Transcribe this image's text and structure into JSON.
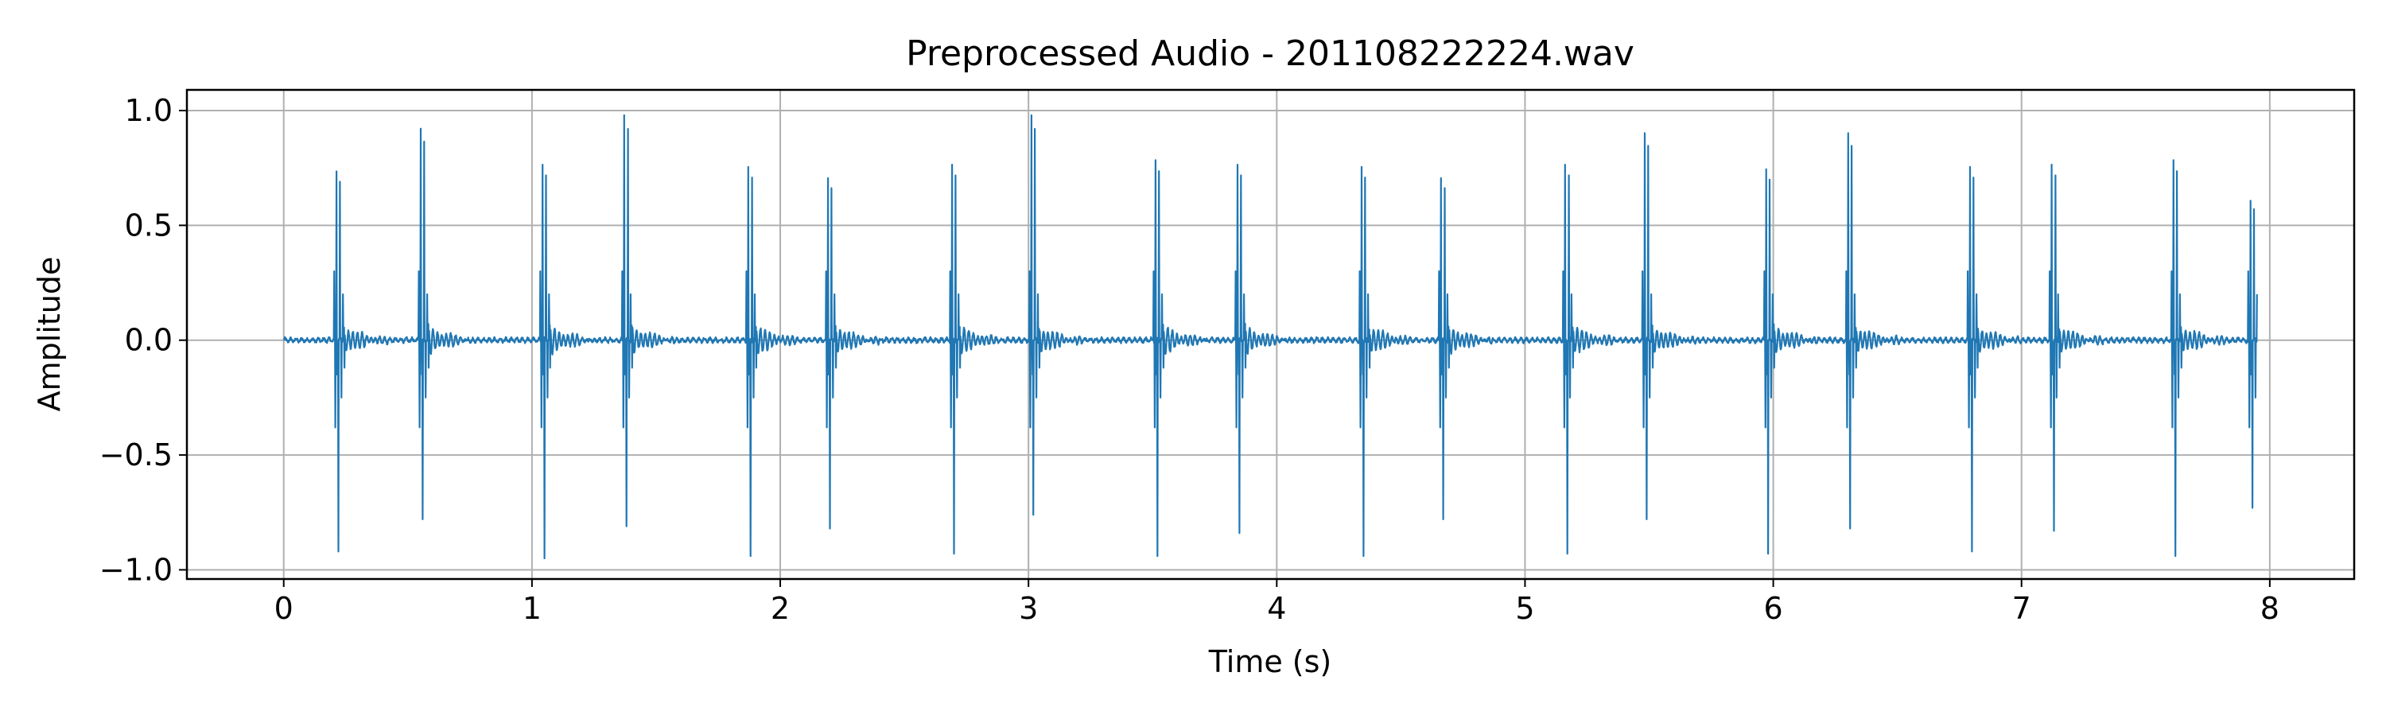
{
  "chart_data": {
    "type": "line",
    "title": "Preprocessed Audio - 201108222224.wav",
    "xlabel": "Time (s)",
    "ylabel": "Amplitude",
    "xlim": [
      -0.39,
      8.34
    ],
    "ylim": [
      -1.04,
      1.09
    ],
    "xticks": [
      0,
      1,
      2,
      3,
      4,
      5,
      6,
      7,
      8
    ],
    "xtick_labels": [
      "0",
      "1",
      "2",
      "3",
      "4",
      "5",
      "6",
      "7",
      "8"
    ],
    "yticks": [
      -1.0,
      -0.5,
      0.0,
      0.5,
      1.0
    ],
    "ytick_labels": [
      "−1.0",
      "−0.5",
      "0.0",
      "0.5",
      "1.0"
    ],
    "grid": true,
    "line_color": "#1f77b4",
    "duration": 7.95,
    "beats": [
      {
        "t": 0.22,
        "peak": 0.75,
        "trough": -0.92
      },
      {
        "t": 0.56,
        "peak": 0.94,
        "trough": -0.78
      },
      {
        "t": 1.05,
        "peak": 0.78,
        "trough": -0.95
      },
      {
        "t": 1.38,
        "peak": 1.0,
        "trough": -0.81
      },
      {
        "t": 1.88,
        "peak": 0.77,
        "trough": -0.94
      },
      {
        "t": 2.2,
        "peak": 0.72,
        "trough": -0.82
      },
      {
        "t": 2.7,
        "peak": 0.78,
        "trough": -0.93
      },
      {
        "t": 3.02,
        "peak": 1.0,
        "trough": -0.76
      },
      {
        "t": 3.52,
        "peak": 0.8,
        "trough": -0.94
      },
      {
        "t": 3.85,
        "peak": 0.78,
        "trough": -0.84
      },
      {
        "t": 4.35,
        "peak": 0.77,
        "trough": -0.94
      },
      {
        "t": 4.67,
        "peak": 0.72,
        "trough": -0.78
      },
      {
        "t": 5.17,
        "peak": 0.78,
        "trough": -0.93
      },
      {
        "t": 5.49,
        "peak": 0.92,
        "trough": -0.78
      },
      {
        "t": 5.98,
        "peak": 0.76,
        "trough": -0.93
      },
      {
        "t": 6.31,
        "peak": 0.92,
        "trough": -0.82
      },
      {
        "t": 6.8,
        "peak": 0.77,
        "trough": -0.92
      },
      {
        "t": 7.13,
        "peak": 0.78,
        "trough": -0.83
      },
      {
        "t": 7.62,
        "peak": 0.8,
        "trough": -0.94
      },
      {
        "t": 7.93,
        "peak": 0.62,
        "trough": -0.73
      }
    ]
  }
}
